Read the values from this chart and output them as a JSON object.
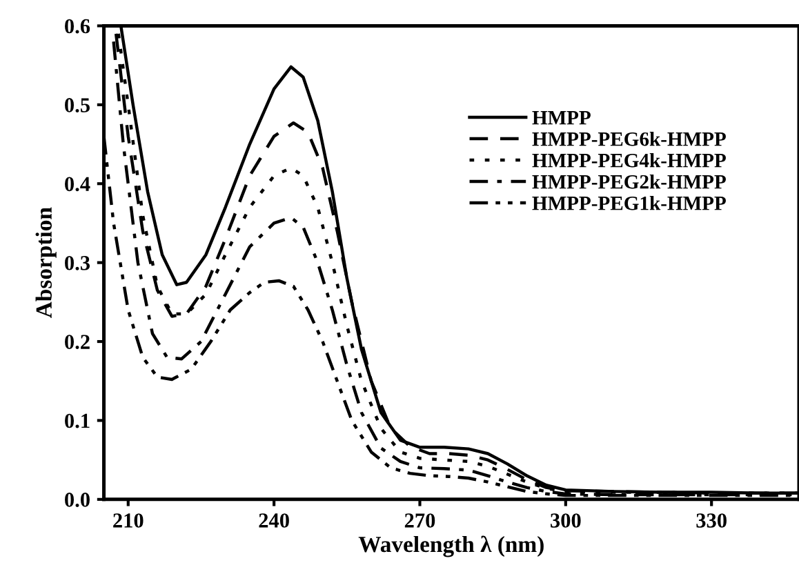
{
  "chart_data": {
    "type": "line",
    "xlabel": "Wavelength λ (nm)",
    "ylabel": "Absorption",
    "xlim": [
      205,
      348
    ],
    "ylim": [
      0,
      0.6
    ],
    "xticks": [
      210,
      240,
      270,
      300,
      330
    ],
    "yticks": [
      {
        "value": 0,
        "label": "0.0"
      },
      0.1,
      0.2,
      0.3,
      0.4,
      0.5,
      0.6
    ],
    "legend": "top right",
    "grid": false,
    "marker": "none",
    "series": [
      {
        "name": "HMPP",
        "color": "#000000",
        "line_style": "solid",
        "x": [
          208.5,
          211,
          214,
          217,
          220,
          222,
          226,
          230,
          235,
          240,
          243.5,
          246,
          249,
          252,
          255,
          258,
          262,
          266,
          270,
          275,
          280,
          284,
          288,
          292,
          296,
          300,
          310,
          320,
          330,
          340,
          348
        ],
        "values": [
          0.6,
          0.5,
          0.39,
          0.31,
          0.272,
          0.275,
          0.31,
          0.37,
          0.45,
          0.52,
          0.548,
          0.535,
          0.48,
          0.39,
          0.28,
          0.19,
          0.11,
          0.075,
          0.066,
          0.066,
          0.064,
          0.058,
          0.045,
          0.03,
          0.018,
          0.012,
          0.01,
          0.009,
          0.009,
          0.008,
          0.008
        ]
      },
      {
        "name": "HMPP-PEG6k-HMPP",
        "color": "#000000",
        "line_style": "dashed",
        "x": [
          207.5,
          210,
          213,
          216,
          219,
          222,
          226,
          230,
          235,
          240,
          244,
          247,
          250,
          253,
          256,
          260,
          264,
          268,
          272,
          276,
          280,
          284,
          288,
          292,
          296,
          300,
          310,
          320,
          330,
          340,
          348
        ],
        "values": [
          0.59,
          0.46,
          0.34,
          0.265,
          0.232,
          0.235,
          0.27,
          0.33,
          0.41,
          0.46,
          0.477,
          0.465,
          0.42,
          0.34,
          0.25,
          0.15,
          0.09,
          0.067,
          0.058,
          0.058,
          0.056,
          0.05,
          0.038,
          0.025,
          0.015,
          0.011,
          0.01,
          0.009,
          0.008,
          0.008,
          0.008
        ]
      },
      {
        "name": "HMPP-PEG4k-HMPP",
        "color": "#000000",
        "line_style": "dotted",
        "x": [
          208,
          210,
          213,
          216,
          219,
          222,
          226,
          230,
          235,
          240,
          243.5,
          246,
          249,
          252,
          255,
          258,
          262,
          266,
          270,
          275,
          280,
          284,
          288,
          292,
          296,
          300,
          310,
          320,
          330,
          340,
          348
        ],
        "values": [
          0.59,
          0.5,
          0.36,
          0.27,
          0.235,
          0.235,
          0.26,
          0.31,
          0.37,
          0.41,
          0.42,
          0.41,
          0.37,
          0.3,
          0.22,
          0.15,
          0.09,
          0.06,
          0.052,
          0.05,
          0.048,
          0.042,
          0.032,
          0.022,
          0.014,
          0.01,
          0.009,
          0.009,
          0.008,
          0.008,
          0.008
        ]
      },
      {
        "name": "HMPP-PEG2k-HMPP",
        "color": "#000000",
        "line_style": "dashdot",
        "x": [
          207,
          209,
          212,
          215,
          218,
          221,
          225,
          230,
          235,
          240,
          243.5,
          246,
          249,
          252,
          255,
          258,
          262,
          266,
          270,
          275,
          280,
          284,
          288,
          292,
          296,
          300,
          310,
          320,
          330,
          340,
          348
        ],
        "values": [
          0.58,
          0.45,
          0.3,
          0.21,
          0.18,
          0.178,
          0.2,
          0.26,
          0.32,
          0.35,
          0.357,
          0.345,
          0.3,
          0.24,
          0.17,
          0.11,
          0.065,
          0.048,
          0.04,
          0.039,
          0.037,
          0.03,
          0.022,
          0.015,
          0.01,
          0.007,
          0.006,
          0.006,
          0.006,
          0.006,
          0.006
        ]
      },
      {
        "name": "HMPP-PEG1k-HMPP",
        "color": "#000000",
        "line_style": "dashdotdot",
        "x": [
          205,
          207,
          210,
          213,
          216,
          219,
          223,
          227,
          231,
          235,
          238,
          241,
          244,
          247,
          250,
          253,
          256,
          260,
          264,
          268,
          272,
          276,
          280,
          284,
          288,
          292,
          296,
          300,
          310,
          320,
          330,
          340,
          348
        ],
        "values": [
          0.46,
          0.35,
          0.24,
          0.18,
          0.155,
          0.152,
          0.165,
          0.2,
          0.24,
          0.262,
          0.275,
          0.277,
          0.27,
          0.24,
          0.2,
          0.15,
          0.1,
          0.06,
          0.04,
          0.033,
          0.03,
          0.029,
          0.027,
          0.022,
          0.016,
          0.01,
          0.007,
          0.005,
          0.005,
          0.005,
          0.005,
          0.005,
          0.005
        ]
      }
    ]
  }
}
